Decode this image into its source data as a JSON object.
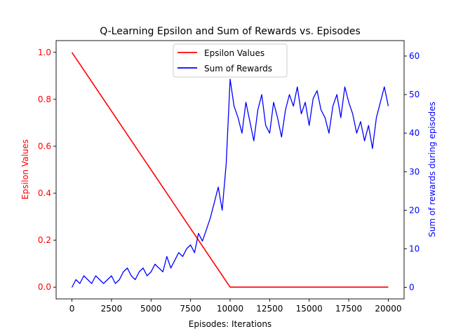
{
  "chart_data": {
    "type": "line",
    "title": "Q-Learning Epsilon and Sum of Rewards vs. Episodes",
    "xlabel": "Episodes: Iterations",
    "ylabel_left": "Epsilon Values",
    "ylabel_right": "Sum of rewards during episodes",
    "xlim": [
      -1000,
      21000
    ],
    "ylim_left": [
      -0.05,
      1.05
    ],
    "ylim_right": [
      -3,
      64
    ],
    "x_ticks": [
      0,
      2500,
      5000,
      7500,
      10000,
      12500,
      15000,
      17500,
      20000
    ],
    "y_left_ticks": [
      0.0,
      0.2,
      0.4,
      0.6,
      0.8,
      1.0
    ],
    "y_right_ticks": [
      0,
      10,
      20,
      30,
      40,
      50,
      60
    ],
    "grid": false,
    "legend": {
      "placement": "top-center",
      "entries": [
        "Epsilon Values",
        "Sum of Rewards"
      ]
    },
    "colors": {
      "epsilon": "#ff0000",
      "rewards": "#0000ff",
      "axis_left": "#ff0000",
      "axis_right": "#0000ff"
    },
    "series": [
      {
        "name": "Epsilon Values",
        "axis": "left",
        "x": [
          0,
          10000,
          20000
        ],
        "y": [
          1.0,
          0.0,
          0.0
        ]
      },
      {
        "name": "Sum of Rewards",
        "axis": "right",
        "x": [
          0,
          250,
          500,
          750,
          1000,
          1250,
          1500,
          1750,
          2000,
          2250,
          2500,
          2750,
          3000,
          3250,
          3500,
          3750,
          4000,
          4250,
          4500,
          4750,
          5000,
          5250,
          5500,
          5750,
          6000,
          6250,
          6500,
          6750,
          7000,
          7250,
          7500,
          7750,
          8000,
          8250,
          8500,
          8750,
          9000,
          9250,
          9500,
          9750,
          10000,
          10250,
          10500,
          10750,
          11000,
          11250,
          11500,
          11750,
          12000,
          12250,
          12500,
          12750,
          13000,
          13250,
          13500,
          13750,
          14000,
          14250,
          14500,
          14750,
          15000,
          15250,
          15500,
          15750,
          16000,
          16250,
          16500,
          16750,
          17000,
          17250,
          17500,
          17750,
          18000,
          18250,
          18500,
          18750,
          19000,
          19250,
          19500,
          19750,
          20000
        ],
        "y": [
          0,
          2,
          1,
          3,
          2,
          1,
          3,
          2,
          1,
          2,
          3,
          1,
          2,
          4,
          5,
          3,
          2,
          4,
          5,
          3,
          4,
          6,
          5,
          4,
          8,
          5,
          7,
          9,
          8,
          10,
          11,
          9,
          14,
          12,
          15,
          18,
          22,
          26,
          20,
          32,
          54,
          47,
          44,
          40,
          48,
          43,
          38,
          46,
          50,
          42,
          40,
          48,
          44,
          39,
          46,
          50,
          47,
          52,
          45,
          48,
          42,
          49,
          51,
          46,
          44,
          40,
          47,
          50,
          44,
          52,
          48,
          45,
          40,
          43,
          38,
          42,
          36,
          44,
          48,
          52,
          47
        ]
      }
    ]
  }
}
